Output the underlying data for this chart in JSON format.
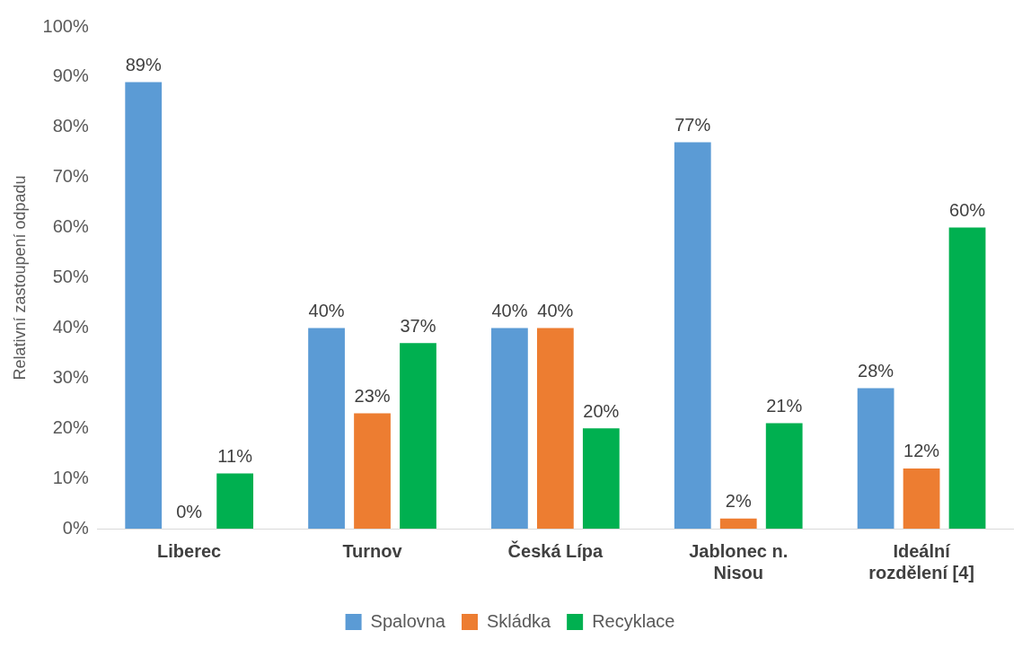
{
  "chart_data": {
    "type": "bar",
    "ylabel": "Relativní zastoupení odpadu",
    "categories": [
      "Liberec",
      "Turnov",
      "Česká Lípa",
      "Jablonec n. Nisou",
      "Ideální rozdělení [4]"
    ],
    "series": [
      {
        "name": "Spalovna",
        "color": "#5b9bd5",
        "values": [
          89,
          40,
          40,
          77,
          28
        ],
        "value_labels": [
          "89%",
          "40%",
          "40%",
          "77%",
          "28%"
        ]
      },
      {
        "name": "Skládka",
        "color": "#ed7d31",
        "values": [
          0,
          23,
          40,
          2,
          12
        ],
        "value_labels": [
          "0%",
          "23%",
          "40%",
          "2%",
          "12%"
        ]
      },
      {
        "name": "Recyklace",
        "color": "#00b050",
        "values": [
          11,
          37,
          20,
          21,
          60
        ],
        "value_labels": [
          "11%",
          "37%",
          "20%",
          "21%",
          "60%"
        ]
      }
    ],
    "ylim": [
      0,
      100
    ],
    "yticks": [
      {
        "value": 0,
        "label": "0%"
      },
      {
        "value": 10,
        "label": "10%"
      },
      {
        "value": 20,
        "label": "20%"
      },
      {
        "value": 30,
        "label": "30%"
      },
      {
        "value": 40,
        "label": "40%"
      },
      {
        "value": 50,
        "label": "50%"
      },
      {
        "value": 60,
        "label": "60%"
      },
      {
        "value": 70,
        "label": "70%"
      },
      {
        "value": 80,
        "label": "80%"
      },
      {
        "value": 90,
        "label": "90%"
      },
      {
        "value": 100,
        "label": "100%"
      }
    ],
    "grid": false,
    "legend": "bottom"
  }
}
